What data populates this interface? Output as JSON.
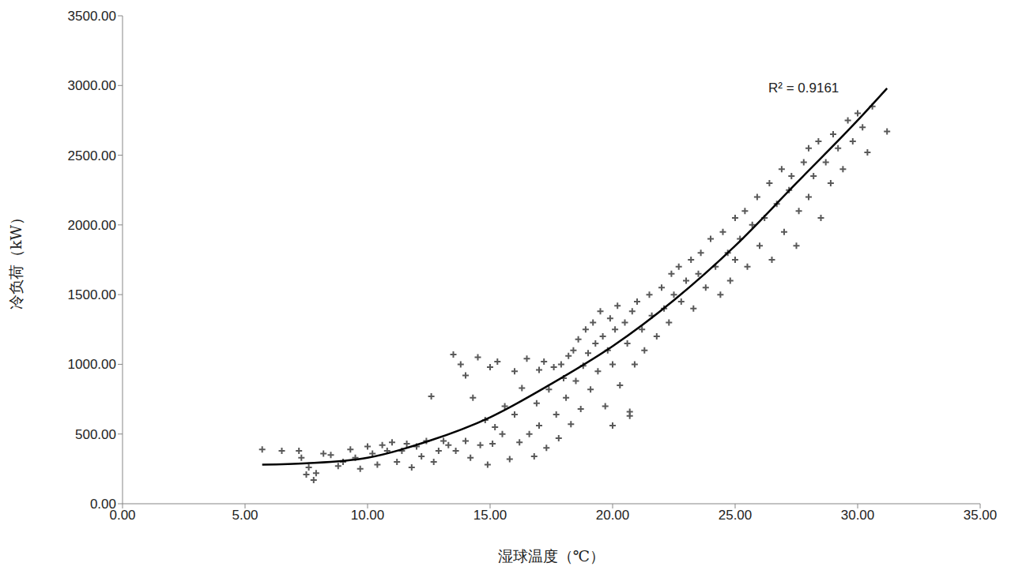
{
  "chart_data": {
    "type": "scatter",
    "x_label": "湿球温度（℃）",
    "y_label": "冷负荷（kW）",
    "annotation": "R² = 0.9161",
    "xlim": [
      0,
      35
    ],
    "xticks": [
      {
        "value": 0,
        "label": "0.00"
      },
      {
        "value": 5,
        "label": "5.00"
      },
      {
        "value": 10,
        "label": "10.00"
      },
      {
        "value": 15,
        "label": "15.00"
      },
      {
        "value": 20,
        "label": "20.00"
      },
      {
        "value": 25,
        "label": "25.00"
      },
      {
        "value": 30,
        "label": "30.00"
      },
      {
        "value": 35,
        "label": "35.00"
      }
    ],
    "ylim": [
      0,
      3500
    ],
    "yticks": [
      {
        "value": 0,
        "label": "0.00"
      },
      {
        "value": 500,
        "label": "500.00"
      },
      {
        "value": 1000,
        "label": "1000.00"
      },
      {
        "value": 1500,
        "label": "1500.00"
      },
      {
        "value": 2000,
        "label": "2000.00"
      },
      {
        "value": 2500,
        "label": "2500.00"
      },
      {
        "value": 3000,
        "label": "3000.00"
      },
      {
        "value": 3500,
        "label": "3500.00"
      }
    ],
    "grid": false,
    "series": [
      {
        "type": "scatter",
        "marker": "plus",
        "color": "#595959",
        "x": [
          5.7,
          6.5,
          7.2,
          7.3,
          7.5,
          7.6,
          7.8,
          7.9,
          8.2,
          8.5,
          8.8,
          9.0,
          9.3,
          9.5,
          9.7,
          10,
          10.2,
          10.4,
          10.6,
          10.8,
          11,
          11.2,
          11.4,
          11.6,
          11.8,
          12,
          12.2,
          12.4,
          12.6,
          12.7,
          12.9,
          13.1,
          13.3,
          13.5,
          13.6,
          13.8,
          14,
          14,
          14.2,
          14.3,
          14.5,
          14.6,
          14.8,
          14.9,
          15,
          15.1,
          15.2,
          15.3,
          15.5,
          15.6,
          15.8,
          16,
          16,
          16.2,
          16.3,
          16.5,
          16.6,
          16.8,
          16.9,
          17,
          17,
          17.2,
          17.3,
          17.4,
          17.6,
          17.7,
          17.8,
          17.9,
          18,
          18.1,
          18.2,
          18.3,
          18.4,
          18.5,
          18.6,
          18.7,
          18.8,
          18.9,
          19,
          19.1,
          19.2,
          19.3,
          19.4,
          19.5,
          19.6,
          19.7,
          19.8,
          19.9,
          20,
          20,
          20.1,
          20.2,
          20.3,
          20.5,
          20.6,
          20.7,
          20.7,
          20.8,
          20.9,
          21,
          21.2,
          21.3,
          21.5,
          21.6,
          21.8,
          22,
          22.1,
          22.3,
          22.4,
          22.5,
          22.7,
          22.8,
          23,
          23.2,
          23.3,
          23.5,
          23.6,
          23.8,
          24,
          24.2,
          24.4,
          24.5,
          24.7,
          24.8,
          25,
          25,
          25.2,
          25.4,
          25.5,
          25.7,
          25.9,
          26,
          26.2,
          26.4,
          26.5,
          26.7,
          26.9,
          27,
          27.2,
          27.3,
          27.5,
          27.6,
          27.8,
          28,
          28,
          28.2,
          28.4,
          28.5,
          28.7,
          28.9,
          29,
          29.2,
          29.4,
          29.6,
          29.8,
          30,
          30.2,
          30.4,
          30.6,
          31.2
        ],
        "values": [
          390,
          380,
          380,
          330,
          210,
          260,
          170,
          220,
          360,
          350,
          270,
          300,
          390,
          330,
          250,
          410,
          360,
          280,
          420,
          380,
          440,
          300,
          380,
          430,
          260,
          410,
          340,
          450,
          770,
          300,
          380,
          450,
          420,
          1070,
          380,
          1000,
          450,
          920,
          330,
          760,
          1050,
          420,
          600,
          280,
          980,
          430,
          550,
          1020,
          500,
          700,
          320,
          950,
          640,
          440,
          830,
          1040,
          500,
          340,
          720,
          960,
          560,
          1020,
          400,
          820,
          980,
          640,
          470,
          1000,
          900,
          760,
          1060,
          570,
          1100,
          880,
          1180,
          680,
          990,
          1250,
          1080,
          820,
          1300,
          1150,
          950,
          1380,
          1200,
          700,
          1100,
          1330,
          1000,
          560,
          1250,
          1420,
          850,
          1300,
          1150,
          660,
          630,
          1380,
          1000,
          1450,
          1250,
          1100,
          1500,
          1350,
          1200,
          1550,
          1400,
          1300,
          1650,
          1500,
          1700,
          1450,
          1600,
          1750,
          1400,
          1650,
          1800,
          1550,
          1900,
          1700,
          1500,
          1950,
          1800,
          1600,
          2050,
          1750,
          1900,
          2100,
          1700,
          2000,
          2200,
          1850,
          2050,
          2300,
          1750,
          2150,
          2400,
          1950,
          2250,
          2350,
          1850,
          2100,
          2450,
          2200,
          2550,
          2350,
          2600,
          2050,
          2450,
          2300,
          2650,
          2550,
          2400,
          2750,
          2600,
          2800,
          2700,
          2520,
          2850,
          2670
        ]
      },
      {
        "type": "line",
        "line_style": "solid",
        "color": "#000000",
        "x": [
          5.7,
          7.5,
          10,
          12.5,
          15,
          17.5,
          20,
          22.5,
          25,
          27.5,
          30,
          31.2
        ],
        "values": [
          280,
          290,
          330,
          450,
          620,
          860,
          1130,
          1460,
          1850,
          2300,
          2750,
          2980
        ]
      }
    ]
  }
}
